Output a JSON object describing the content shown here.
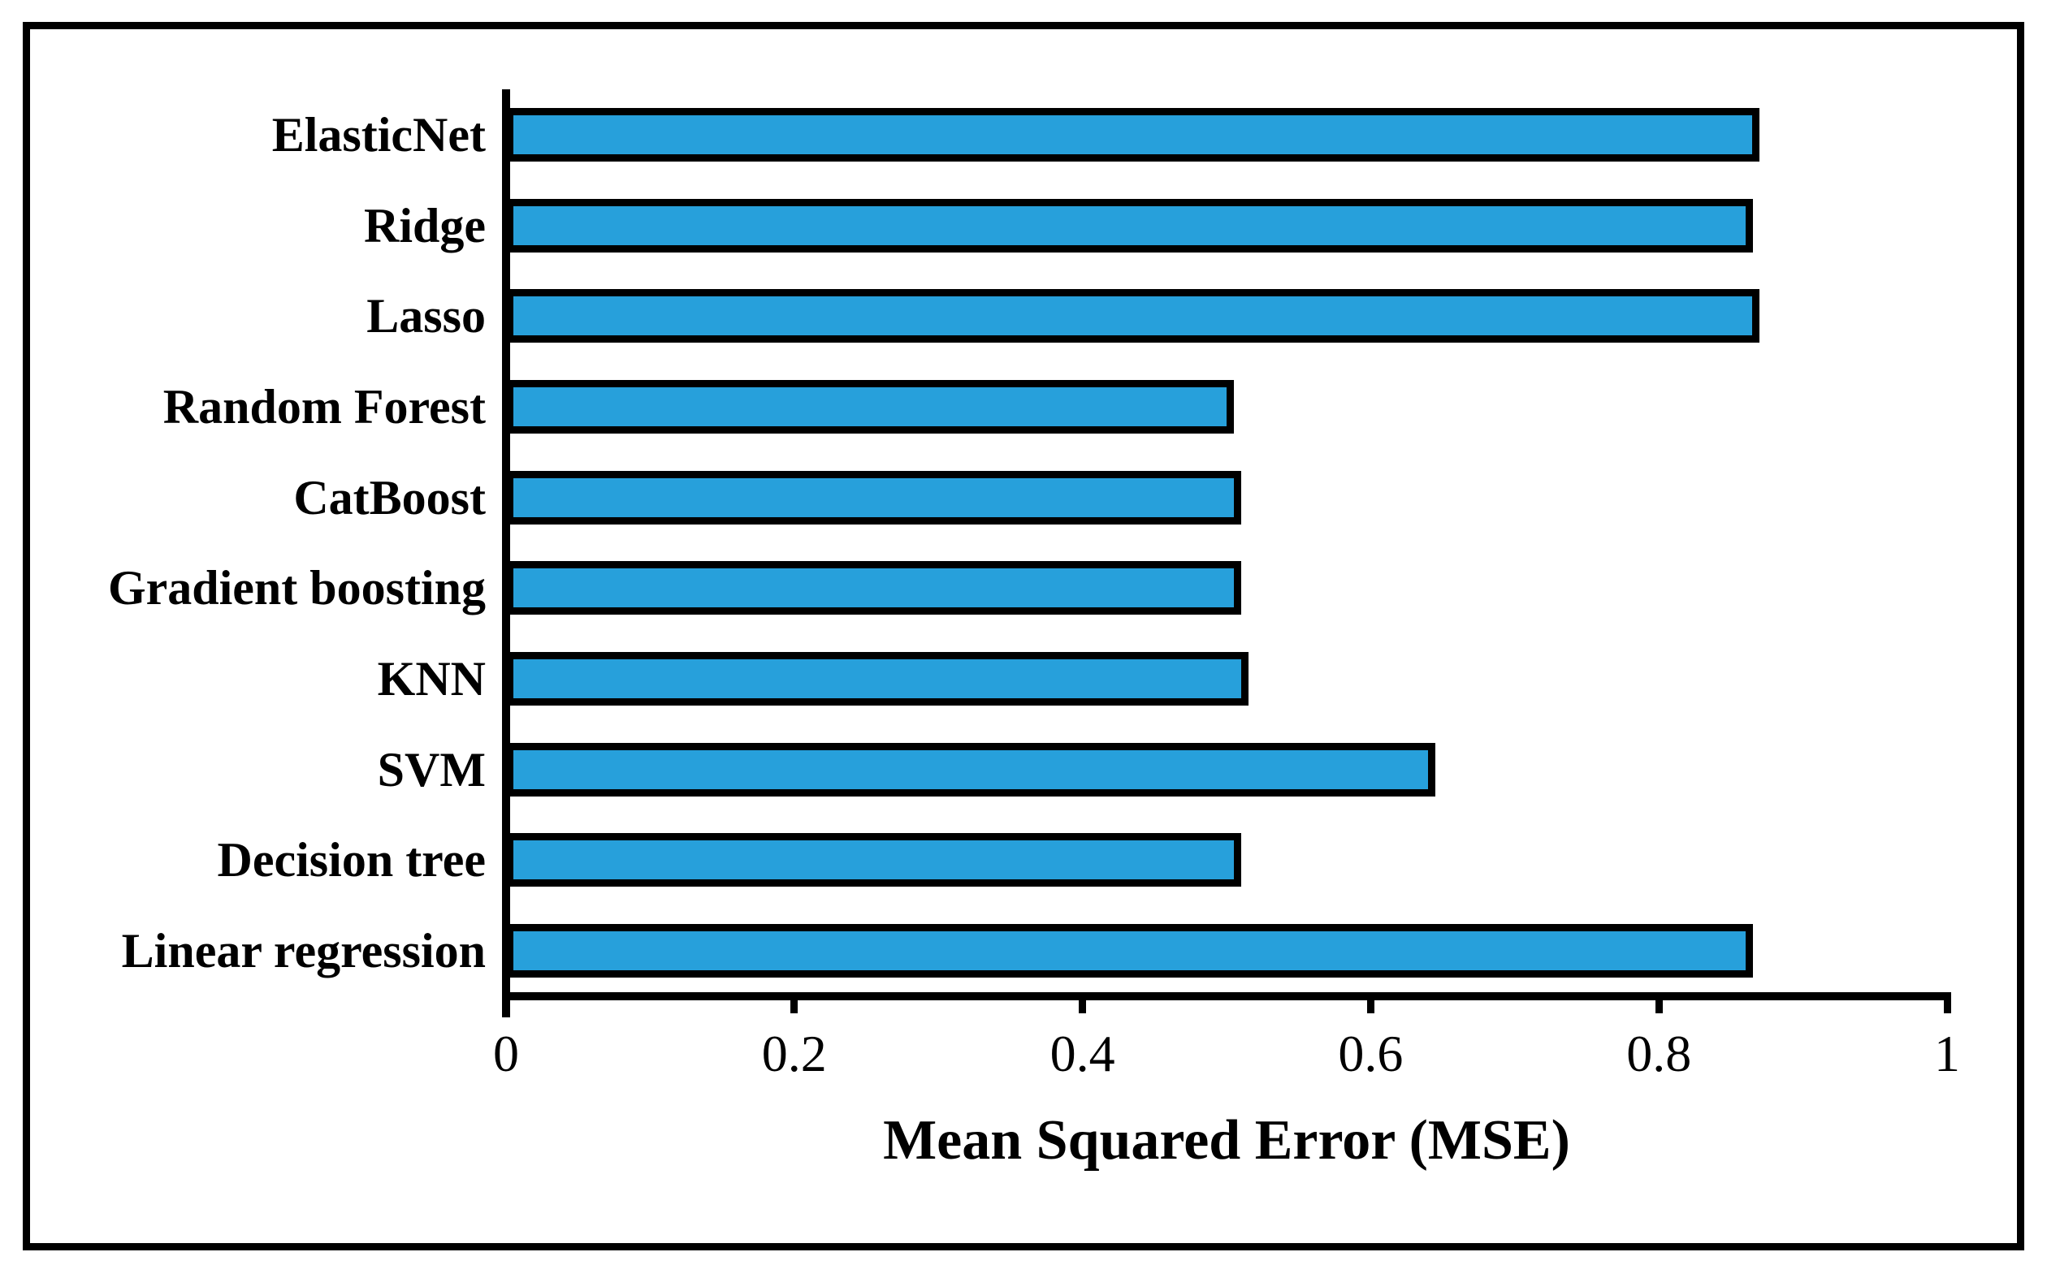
{
  "chart_data": {
    "type": "bar",
    "orientation": "horizontal",
    "title": "",
    "xlabel": "Mean Squared Error (MSE)",
    "ylabel": "",
    "categories": [
      "ElasticNet",
      "Ridge",
      "Lasso",
      "Random Forest",
      "CatBoost",
      "Gradient boosting",
      "KNN",
      "SVM",
      "Decision tree",
      "Linear regression"
    ],
    "values": [
      0.87,
      0.865,
      0.87,
      0.505,
      0.51,
      0.51,
      0.515,
      0.645,
      0.51,
      0.865
    ],
    "xlim": [
      0,
      1
    ],
    "x_ticks": [
      0,
      0.2,
      0.4,
      0.6,
      0.8,
      1
    ],
    "x_tick_labels": [
      "0",
      "0.2",
      "0.4",
      "0.6",
      "0.8",
      "1"
    ],
    "grid": false,
    "legend_position": "none",
    "bar_color": "#27A0DB",
    "bar_border_color": "#000000",
    "axis_color": "#000000",
    "frame_border_color": "#000000",
    "background_color": "#ffffff"
  }
}
